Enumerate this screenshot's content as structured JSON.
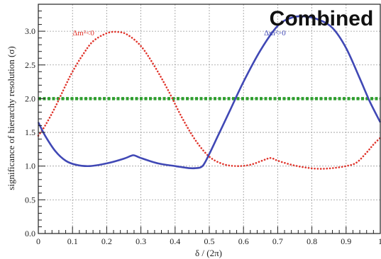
{
  "chart_data": {
    "type": "line",
    "title": "Combined",
    "xlabel": "δ / (2π)",
    "ylabel": "significance of hierarchy resolution (σ)",
    "xlim": [
      0,
      1
    ],
    "ylim": [
      0,
      3.4
    ],
    "xticks": [
      0,
      0.1,
      0.2,
      0.3,
      0.4,
      0.5,
      0.6,
      0.7,
      0.8,
      0.9,
      1
    ],
    "xtick_labels": [
      "0",
      "0.1",
      "0.2",
      "0.3",
      "0.4",
      "0.5",
      "0.6",
      "0.7",
      "0.8",
      "0.9",
      "1"
    ],
    "yticks": [
      0,
      0.5,
      1,
      1.5,
      2,
      2.5,
      3
    ],
    "ytick_labels": [
      "0.0",
      "0.5",
      "1.0",
      "1.5",
      "2.0",
      "2.5",
      "3.0"
    ],
    "grid": true,
    "series": [
      {
        "name": "Δm²<0",
        "color": "#e0342b",
        "style": "dotted",
        "x": [
          0,
          0.02,
          0.05,
          0.08,
          0.1,
          0.13,
          0.16,
          0.2,
          0.23,
          0.26,
          0.3,
          0.34,
          0.38,
          0.42,
          0.46,
          0.5,
          0.54,
          0.58,
          0.62,
          0.66,
          0.68,
          0.7,
          0.74,
          0.78,
          0.82,
          0.86,
          0.9,
          0.93,
          0.96,
          0.98,
          1
        ],
        "y": [
          1.45,
          1.6,
          1.88,
          2.2,
          2.4,
          2.65,
          2.85,
          2.97,
          2.99,
          2.95,
          2.78,
          2.48,
          2.12,
          1.72,
          1.38,
          1.14,
          1.03,
          1.0,
          1.02,
          1.09,
          1.12,
          1.08,
          1.02,
          0.98,
          0.96,
          0.97,
          1.0,
          1.05,
          1.2,
          1.32,
          1.42
        ]
      },
      {
        "name": "Δm²>0",
        "color": "#4048b5",
        "style": "solid",
        "x": [
          0,
          0.02,
          0.05,
          0.08,
          0.11,
          0.15,
          0.2,
          0.25,
          0.27,
          0.28,
          0.3,
          0.35,
          0.4,
          0.44,
          0.46,
          0.48,
          0.5,
          0.53,
          0.56,
          0.6,
          0.65,
          0.7,
          0.74,
          0.78,
          0.82,
          0.86,
          0.9,
          0.94,
          0.97,
          1
        ],
        "y": [
          1.65,
          1.45,
          1.22,
          1.08,
          1.02,
          1.0,
          1.04,
          1.11,
          1.15,
          1.16,
          1.12,
          1.04,
          1.0,
          0.97,
          0.97,
          1.0,
          1.18,
          1.5,
          1.82,
          2.25,
          2.72,
          3.08,
          3.2,
          3.22,
          3.17,
          3.05,
          2.75,
          2.3,
          1.95,
          1.65
        ]
      },
      {
        "name": "",
        "color": "#2e9e2e",
        "style": "dashed",
        "x": [
          0,
          1
        ],
        "y": [
          2.0,
          2.0
        ]
      }
    ],
    "annotations": [
      {
        "text": "Δm²<0",
        "x": 0.1,
        "y": 2.98,
        "color": "#e0342b"
      },
      {
        "text": "Δm²>0",
        "x": 0.66,
        "y": 2.98,
        "color": "#4048b5"
      }
    ]
  }
}
